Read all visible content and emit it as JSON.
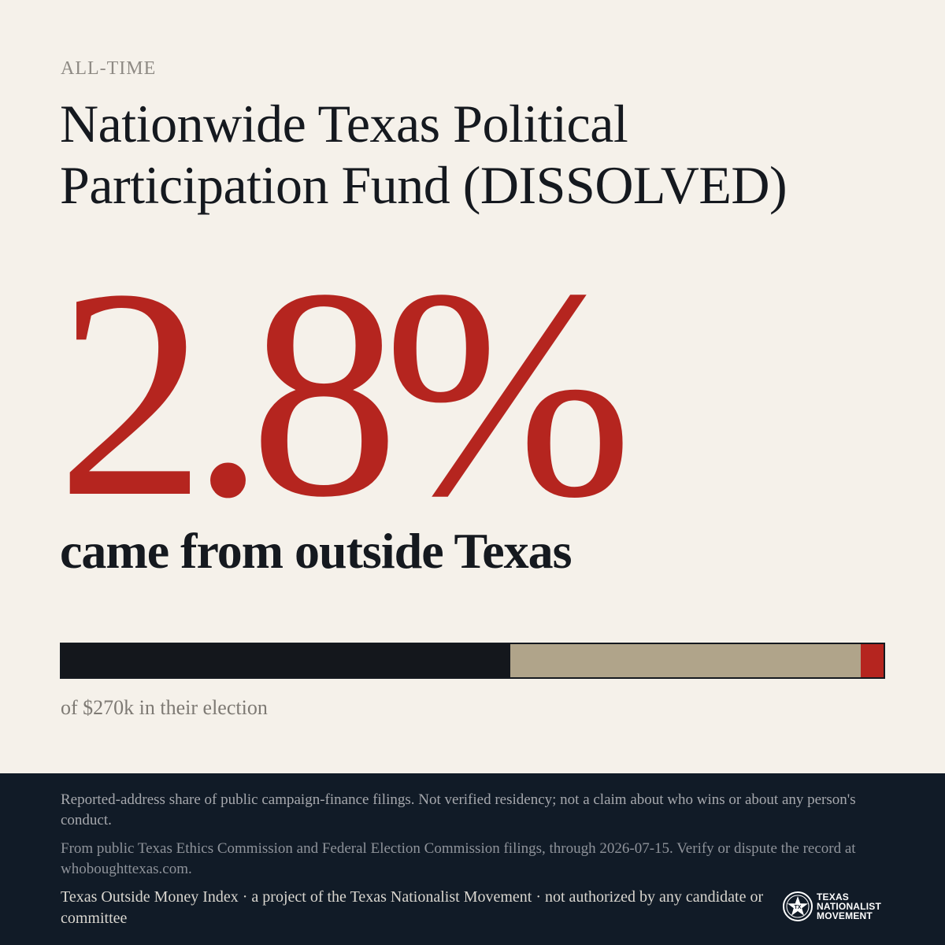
{
  "kicker": "ALL-TIME",
  "title": "Nationwide Texas Political Participation Fund (DISSOLVED)",
  "stat": {
    "value": "2.8%",
    "caption": "came from outside Texas"
  },
  "share_bar": {
    "segments": [
      {
        "key": "texas",
        "fraction": 0.546,
        "color": "#14171c"
      },
      {
        "key": "unknown",
        "fraction": 0.426,
        "color": "#b0a48a"
      },
      {
        "key": "outside",
        "fraction": 0.028,
        "color": "#b5251f"
      }
    ],
    "caption": "of $270k in their election"
  },
  "footer": {
    "disclaimer": "Reported-address share of public campaign-finance filings. Not verified residency; not a claim about who wins or about any person's conduct.",
    "source": "From public Texas Ethics Commission and Federal Election Commission filings, through 2026-07-15. Verify or dispute the record at whoboughttexas.com.",
    "credit": "Texas Outside Money Index · a project of the Texas Nationalist Movement · not authorized by any candidate or committee",
    "logo": {
      "icon": "star-seal-icon",
      "line1": "TEXAS",
      "line2": "NATIONALIST",
      "line3": "MOVEMENT"
    }
  }
}
